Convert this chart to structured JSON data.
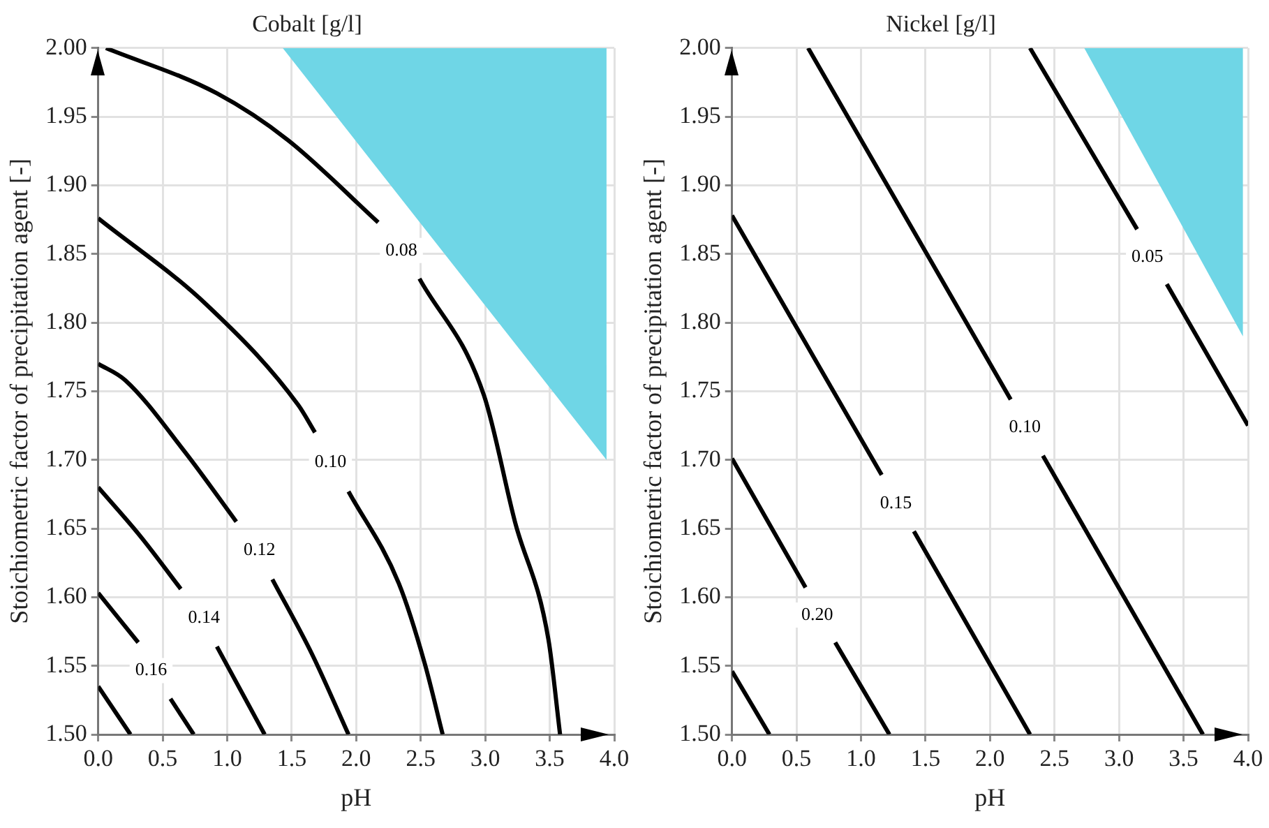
{
  "chart_data": [
    {
      "type": "line",
      "title": "Cobalt [g/l]",
      "xlabel": "pH",
      "ylabel": "Stoichiometric factor of precipitation agent [-]",
      "xlim": [
        0,
        4
      ],
      "ylim": [
        1.5,
        2.0
      ],
      "xticks": [
        {
          "value": 0,
          "label": "0.0"
        },
        0.5,
        {
          "value": 1,
          "label": "1.0"
        },
        1.5,
        {
          "value": 2,
          "label": "2.0"
        },
        2.5,
        {
          "value": 3,
          "label": "3.0"
        },
        3.5,
        {
          "value": 4,
          "label": "4.0"
        }
      ],
      "yticks": [
        {
          "value": 1.5,
          "label": "1.50"
        },
        1.55,
        {
          "value": 1.6,
          "label": "1.60"
        },
        1.65,
        {
          "value": 1.7,
          "label": "1.70"
        },
        1.75,
        {
          "value": 1.8,
          "label": "1.80"
        },
        1.85,
        {
          "value": 1.9,
          "label": "1.90"
        },
        1.95,
        {
          "value": 2.0,
          "label": "2.00"
        }
      ],
      "grid": true,
      "legend": false,
      "marker": "none",
      "line_style": "solid",
      "series": [
        {
          "type": "area",
          "color": "#6fd6e6",
          "x": [
            1.43,
            3.94,
            3.94,
            1.43
          ],
          "values": [
            2.0,
            1.7,
            2.0,
            2.0
          ]
        },
        {
          "name": "0.08",
          "color": "#000000",
          "x": [
            0.06,
            0.92,
            1.47,
            2.17,
            2.35,
            2.49,
            2.99,
            3.23,
            3.49,
            3.58
          ],
          "values": [
            2.0,
            1.967,
            1.933,
            1.873,
            null,
            1.832,
            1.747,
            1.655,
            1.569,
            1.5
          ]
        },
        {
          "name": "0.10",
          "color": "#000000",
          "x": [
            0,
            0.84,
            1.55,
            1.68,
            1.8,
            1.94,
            2.33,
            2.53,
            2.67
          ],
          "values": [
            1.876,
            1.813,
            1.74,
            1.72,
            null,
            1.677,
            1.61,
            1.552,
            1.5
          ]
        },
        {
          "name": "0.12",
          "color": "#000000",
          "x": [
            0,
            0.21,
            0.67,
            1.07,
            1.25,
            1.35,
            1.66,
            1.94
          ],
          "values": [
            1.77,
            1.758,
            1.706,
            1.655,
            null,
            1.613,
            1.558,
            1.5
          ]
        },
        {
          "name": "0.14",
          "color": "#000000",
          "x": [
            0,
            0.33,
            0.64,
            0.82,
            0.92,
            1.29
          ],
          "values": [
            1.68,
            1.644,
            1.606,
            null,
            1.564,
            1.5
          ]
        },
        {
          "name": "0.16",
          "color": "#000000",
          "x": [
            0,
            0.31,
            0.41,
            0.56,
            0.74
          ],
          "values": [
            1.603,
            1.567,
            null,
            1.526,
            1.5
          ]
        },
        {
          "color": "#000000",
          "x": [
            0,
            0.25
          ],
          "values": [
            1.535,
            1.5
          ]
        }
      ]
    },
    {
      "type": "line",
      "title": "Nickel [g/l]",
      "xlabel": "pH",
      "ylabel": "Stoichiometric factor of precipitation agent [-]",
      "xlim": [
        0,
        4
      ],
      "ylim": [
        1.5,
        2.0
      ],
      "xticks": [
        {
          "value": 0,
          "label": "0.0"
        },
        0.5,
        {
          "value": 1,
          "label": "1.0"
        },
        1.5,
        {
          "value": 2,
          "label": "2.0"
        },
        2.5,
        {
          "value": 3,
          "label": "3.0"
        },
        3.5,
        {
          "value": 4,
          "label": "4.0"
        }
      ],
      "yticks": [
        {
          "value": 1.5,
          "label": "1.50"
        },
        1.55,
        {
          "value": 1.6,
          "label": "1.60"
        },
        1.65,
        {
          "value": 1.7,
          "label": "1.70"
        },
        1.75,
        {
          "value": 1.8,
          "label": "1.80"
        },
        1.85,
        {
          "value": 1.9,
          "label": "1.90"
        },
        1.95,
        {
          "value": 2.0,
          "label": "2.00"
        }
      ],
      "grid": true,
      "legend": false,
      "marker": "none",
      "line_style": "solid",
      "series": [
        {
          "type": "area",
          "color": "#6fd6e6",
          "x": [
            2.73,
            3.96,
            3.96,
            2.73
          ],
          "values": [
            2.0,
            1.79,
            2.0,
            2.0
          ]
        },
        {
          "name": "0.05",
          "color": "#000000",
          "x": [
            2.31,
            3.14,
            3.22,
            3.37,
            4.0
          ],
          "values": [
            2.0,
            1.868,
            null,
            1.828,
            1.725
          ]
        },
        {
          "name": "0.10",
          "color": "#000000",
          "x": [
            0.59,
            2.16,
            2.27,
            2.41,
            3.65
          ],
          "values": [
            2.0,
            1.744,
            null,
            1.703,
            1.5
          ]
        },
        {
          "name": "0.15",
          "color": "#000000",
          "x": [
            0,
            1.16,
            1.27,
            1.41,
            2.31
          ],
          "values": [
            1.878,
            1.689,
            null,
            1.648,
            1.5
          ]
        },
        {
          "name": "0.20",
          "color": "#000000",
          "x": [
            0,
            0.57,
            0.66,
            0.8,
            1.22
          ],
          "values": [
            1.701,
            1.607,
            null,
            1.567,
            1.5
          ]
        },
        {
          "color": "#000000",
          "x": [
            0,
            0.29
          ],
          "values": [
            1.546,
            1.5
          ]
        }
      ]
    }
  ]
}
